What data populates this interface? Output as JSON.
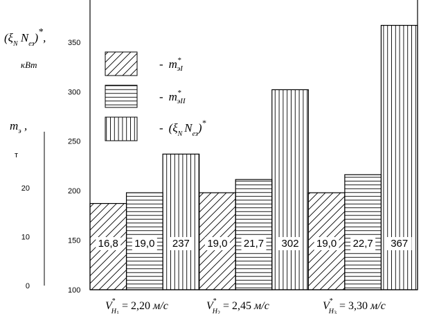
{
  "chart_data": {
    "type": "bar",
    "categories": [
      "V*H1 = 2,20 м/с",
      "V*H2 = 2,45 м/с",
      "V*H3 = 3,30 м/с"
    ],
    "category_labels": [
      {
        "v": "V",
        "sup": "*",
        "sub": "H",
        "subidx": "1",
        "rest": " = 2,20 ",
        "unit": "м/с"
      },
      {
        "v": "V",
        "sup": "*",
        "sub": "H",
        "subidx": "2",
        "rest": " = 2,45 ",
        "unit": "м/с"
      },
      {
        "v": "V",
        "sup": "*",
        "sub": "H",
        "subidx": "3",
        "rest": " = 3,30 ",
        "unit": "м/с"
      }
    ],
    "series": [
      {
        "name": "m*эI",
        "pattern": "diagonal",
        "axis": "left",
        "values": [
          16.8,
          19.0,
          19.0
        ],
        "labels": [
          "16,8",
          "19,0",
          "19,0"
        ]
      },
      {
        "name": "m*эII",
        "pattern": "horizontal",
        "axis": "left",
        "values": [
          19.0,
          21.7,
          22.7
        ],
        "labels": [
          "19,0",
          "21,7",
          "22,7"
        ]
      },
      {
        "name": "(ξN̄ Nез)*",
        "pattern": "vertical",
        "axis": "right",
        "values": [
          237,
          302,
          367
        ],
        "labels": [
          "237",
          "302",
          "367"
        ]
      }
    ],
    "y_left": {
      "label_main": "m",
      "label_sub": "э",
      "label_tail": " ,",
      "unit": "т",
      "range": [
        0,
        30
      ],
      "ticks": [
        0,
        10,
        20
      ]
    },
    "y_right": {
      "label_main": "(ξ",
      "label_subN": "N",
      "label_rest": " N",
      "label_subez": "ез",
      "label_close": ")",
      "label_star": "*",
      "label_comma": ",",
      "unit": "кВт",
      "range": [
        100,
        380
      ],
      "ticks": [
        100,
        150,
        200,
        250,
        300,
        350
      ]
    },
    "legend": [
      {
        "dash": "-",
        "main": "m",
        "sup": "*",
        "sub": "эI",
        "pattern": "diagonal"
      },
      {
        "dash": "-",
        "main": "m",
        "sup": "*",
        "sub": "эII",
        "pattern": "horizontal"
      },
      {
        "dash": "-",
        "main": "(ξ",
        "subN": "N",
        "rest": "N",
        "subez": "ез",
        "close": ")",
        "sup": "*",
        "pattern": "vertical"
      }
    ],
    "legend_placement": "top-left",
    "grid": false
  }
}
